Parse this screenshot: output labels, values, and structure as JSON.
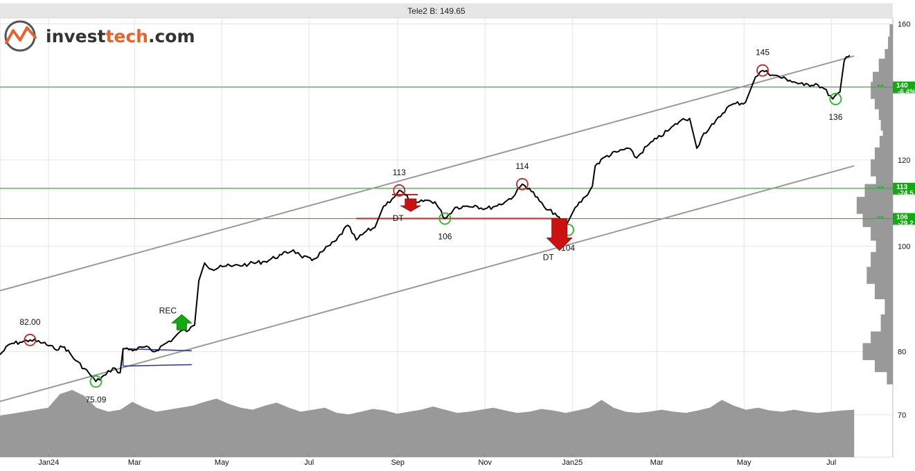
{
  "header": {
    "title": "Tele2 B: 149.65"
  },
  "logo": {
    "text_a": "invest",
    "text_b": "tech",
    "text_c": ".com",
    "color_a": "#333333",
    "color_b": "#e8632b"
  },
  "colors": {
    "price": "#000000",
    "trend": "#999999",
    "support": "#22bb22",
    "resistance": "#cc2222",
    "volume": "#999999",
    "level_box": "#11aa11",
    "rec_arrow": "#11aa11",
    "dt_arrow": "#cc1111",
    "rect_line": "#2233aa",
    "grid": "#e4e4e4",
    "header_bg": "#e6e6e6"
  },
  "chart_data": {
    "type": "line",
    "title": "Tele2 B: 149.65",
    "y_scale": "log",
    "ylim": [
      64,
      162
    ],
    "xlim": [
      "2023-11-28",
      "2025-08-13"
    ],
    "y_ticks": [
      70,
      80,
      100,
      120,
      160
    ],
    "x_ticks": [
      {
        "label": "Jan24",
        "date": "2024-01-01"
      },
      {
        "label": "Mar",
        "date": "2024-03-01"
      },
      {
        "label": "May",
        "date": "2024-05-01"
      },
      {
        "label": "Jul",
        "date": "2024-07-01"
      },
      {
        "label": "Sep",
        "date": "2024-09-01"
      },
      {
        "label": "Nov",
        "date": "2024-11-01"
      },
      {
        "label": "Jan25",
        "date": "2025-01-01"
      },
      {
        "label": "Mar",
        "date": "2025-03-01"
      },
      {
        "label": "May",
        "date": "2025-05-01"
      },
      {
        "label": "Jul",
        "date": "2025-07-01"
      }
    ],
    "series": [
      {
        "values": [
          [
            "2023-11-28",
            79.5
          ],
          [
            "2023-12-05",
            81.3
          ],
          [
            "2023-12-12",
            81.6
          ],
          [
            "2023-12-19",
            82.0
          ],
          [
            "2023-12-28",
            81.5
          ],
          [
            "2024-01-05",
            80.5
          ],
          [
            "2024-01-12",
            80.8
          ],
          [
            "2024-01-20",
            78.5
          ],
          [
            "2024-01-29",
            76.5
          ],
          [
            "2024-02-03",
            75.1
          ],
          [
            "2024-02-10",
            76.2
          ],
          [
            "2024-02-15",
            77.3
          ],
          [
            "2024-02-20",
            76.5
          ],
          [
            "2024-02-22",
            80.5
          ],
          [
            "2024-03-01",
            80.3
          ],
          [
            "2024-03-08",
            80.8
          ],
          [
            "2024-03-15",
            80.0
          ],
          [
            "2024-03-22",
            81.3
          ],
          [
            "2024-03-28",
            82.2
          ],
          [
            "2024-04-02",
            83.5
          ],
          [
            "2024-04-08",
            83.7
          ],
          [
            "2024-04-12",
            84.6
          ],
          [
            "2024-04-15",
            93.0
          ],
          [
            "2024-04-19",
            96.5
          ],
          [
            "2024-04-24",
            95.2
          ],
          [
            "2024-04-30",
            96.0
          ],
          [
            "2024-05-08",
            95.8
          ],
          [
            "2024-05-20",
            96.3
          ],
          [
            "2024-05-31",
            96.8
          ],
          [
            "2024-06-12",
            98.2
          ],
          [
            "2024-06-20",
            99.2
          ],
          [
            "2024-06-25",
            98.0
          ],
          [
            "2024-07-03",
            97.0
          ],
          [
            "2024-07-10",
            98.8
          ],
          [
            "2024-07-20",
            101.2
          ],
          [
            "2024-07-28",
            104.5
          ],
          [
            "2024-08-03",
            101.3
          ],
          [
            "2024-08-10",
            103.2
          ],
          [
            "2024-08-16",
            104.0
          ],
          [
            "2024-08-22",
            108.8
          ],
          [
            "2024-08-28",
            110.5
          ],
          [
            "2024-09-02",
            112.5
          ],
          [
            "2024-09-06",
            111.5
          ],
          [
            "2024-09-12",
            109.0
          ],
          [
            "2024-09-20",
            110.2
          ],
          [
            "2024-09-27",
            109.8
          ],
          [
            "2024-10-04",
            106.0
          ],
          [
            "2024-10-11",
            108.5
          ],
          [
            "2024-10-18",
            108.8
          ],
          [
            "2024-10-25",
            109.0
          ],
          [
            "2024-11-01",
            108.2
          ],
          [
            "2024-11-08",
            108.8
          ],
          [
            "2024-11-15",
            109.8
          ],
          [
            "2024-11-22",
            111.5
          ],
          [
            "2024-11-27",
            114.0
          ],
          [
            "2024-12-02",
            113.0
          ],
          [
            "2024-12-09",
            110.0
          ],
          [
            "2024-12-14",
            108.0
          ],
          [
            "2024-12-20",
            107.2
          ],
          [
            "2024-12-27",
            104.0
          ],
          [
            "2025-01-03",
            108.5
          ],
          [
            "2025-01-10",
            111.0
          ],
          [
            "2025-01-15",
            113.5
          ],
          [
            "2025-01-17",
            118.5
          ],
          [
            "2025-01-24",
            120.8
          ],
          [
            "2025-02-01",
            122.0
          ],
          [
            "2025-02-09",
            123.0
          ],
          [
            "2025-02-15",
            120.5
          ],
          [
            "2025-02-22",
            123.5
          ],
          [
            "2025-03-01",
            125.5
          ],
          [
            "2025-03-10",
            128.0
          ],
          [
            "2025-03-18",
            130.5
          ],
          [
            "2025-03-24",
            131.0
          ],
          [
            "2025-03-29",
            123.0
          ],
          [
            "2025-04-03",
            127.0
          ],
          [
            "2025-04-10",
            129.5
          ],
          [
            "2025-04-19",
            134.0
          ],
          [
            "2025-04-25",
            135.2
          ],
          [
            "2025-05-02",
            135.5
          ],
          [
            "2025-05-09",
            143.0
          ],
          [
            "2025-05-14",
            145.0
          ],
          [
            "2025-05-22",
            143.5
          ],
          [
            "2025-06-02",
            142.0
          ],
          [
            "2025-06-12",
            140.5
          ],
          [
            "2025-06-20",
            141.0
          ],
          [
            "2025-06-26",
            139.5
          ],
          [
            "2025-07-02",
            136.5
          ],
          [
            "2025-07-07",
            138.5
          ],
          [
            "2025-07-10",
            148.0
          ],
          [
            "2025-07-14",
            149.65
          ]
        ]
      }
    ],
    "trend_channel": {
      "upper": [
        [
          "2023-11-28",
          91.0
        ],
        [
          "2025-07-17",
          149.5
        ]
      ],
      "lower": [
        [
          "2023-11-28",
          72.0
        ],
        [
          "2025-07-17",
          118.5
        ]
      ]
    },
    "horizontal_levels": [
      {
        "value": 140,
        "label": "140",
        "pct": "-6.4%"
      },
      {
        "value": 113,
        "label": "113",
        "pct": "-24.5"
      },
      {
        "value": 106,
        "label": "106",
        "pct": "-29.2"
      }
    ],
    "point_annotations": [
      {
        "kind": "top",
        "date": "2023-12-19",
        "value": 82.0,
        "label": "82.00"
      },
      {
        "kind": "bottom",
        "date": "2024-02-03",
        "value": 75.1,
        "label": "75.09"
      },
      {
        "kind": "top",
        "date": "2024-09-02",
        "value": 112.5,
        "label": "113"
      },
      {
        "kind": "bottom",
        "date": "2024-10-04",
        "value": 106.0,
        "label": "106"
      },
      {
        "kind": "top",
        "date": "2024-11-27",
        "value": 114.0,
        "label": "114"
      },
      {
        "kind": "bottom",
        "date": "2024-12-29",
        "value": 103.5,
        "label": "104"
      },
      {
        "kind": "top",
        "date": "2025-05-14",
        "value": 145.0,
        "label": "145"
      },
      {
        "kind": "bottom",
        "date": "2025-07-04",
        "value": 136.5,
        "label": "136"
      }
    ],
    "signals": [
      {
        "kind": "buy",
        "label": "REC",
        "date": "2024-04-03",
        "value": 85.0
      },
      {
        "kind": "sell",
        "label": "DT",
        "date": "2024-09-10",
        "value": 110.5
      },
      {
        "kind": "sell",
        "label": "DT",
        "date": "2024-12-23",
        "value": 106.0
      }
    ],
    "formations": [
      {
        "kind": "rectangle",
        "from": "2024-02-22",
        "to": "2024-04-10",
        "top": 80.5,
        "bottom": 77.6
      },
      {
        "kind": "double-top",
        "from": "2024-08-28",
        "to": "2024-09-15",
        "level": 111.5
      },
      {
        "kind": "double-top",
        "from": "2024-08-03",
        "to": "2024-12-23",
        "level": 106.0
      }
    ],
    "volume_profile": [
      [
        157,
        0.08
      ],
      [
        153,
        0.12
      ],
      [
        149,
        0.2
      ],
      [
        146,
        0.35
      ],
      [
        142,
        0.5
      ],
      [
        139,
        0.55
      ],
      [
        136,
        0.45
      ],
      [
        133,
        0.35
      ],
      [
        130,
        0.3
      ],
      [
        127,
        0.25
      ],
      [
        124,
        0.33
      ],
      [
        121,
        0.45
      ],
      [
        118,
        0.55
      ],
      [
        115,
        0.42
      ],
      [
        112,
        0.7
      ],
      [
        109,
        0.9
      ],
      [
        106,
        0.75
      ],
      [
        103,
        0.55
      ],
      [
        100,
        0.42
      ],
      [
        97,
        0.55
      ],
      [
        94,
        0.65
      ],
      [
        91,
        0.45
      ],
      [
        88,
        0.2
      ],
      [
        85,
        0.3
      ],
      [
        82,
        0.55
      ],
      [
        80,
        0.75
      ],
      [
        78,
        0.45
      ],
      [
        76,
        0.15
      ]
    ],
    "volume_series": [
      0.35,
      0.4,
      0.45,
      0.5,
      0.55,
      0.9,
      1.0,
      0.85,
      0.55,
      0.45,
      0.5,
      0.7,
      0.55,
      0.45,
      0.5,
      0.55,
      0.6,
      0.7,
      0.78,
      0.65,
      0.55,
      0.5,
      0.6,
      0.68,
      0.55,
      0.45,
      0.5,
      0.55,
      0.42,
      0.38,
      0.45,
      0.52,
      0.48,
      0.4,
      0.45,
      0.5,
      0.58,
      0.5,
      0.42,
      0.45,
      0.5,
      0.55,
      0.48,
      0.42,
      0.45,
      0.52,
      0.48,
      0.42,
      0.48,
      0.55,
      0.75,
      0.55,
      0.45,
      0.42,
      0.45,
      0.5,
      0.45,
      0.42,
      0.48,
      0.55,
      0.75,
      0.6,
      0.5,
      0.55,
      0.48,
      0.45,
      0.5,
      0.45,
      0.42,
      0.45,
      0.48,
      0.5
    ]
  }
}
